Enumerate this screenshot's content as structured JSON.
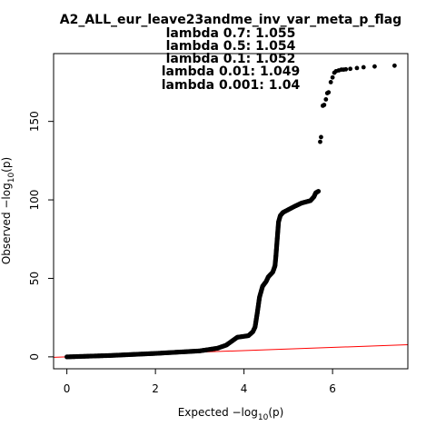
{
  "chart_data": {
    "type": "scatter",
    "title_lines": [
      "A2_ALL_eur_leave23andme_inv_var_meta_p_flag",
      "lambda 0.7: 1.055",
      "lambda 0.5: 1.054",
      "lambda 0.1: 1.052",
      "lambda 0.01: 1.049",
      "lambda 0.001: 1.04"
    ],
    "xlabel": {
      "main": "Expected  −log",
      "sub": "10",
      "tail": "(p)"
    },
    "ylabel": {
      "main": "Observed  −log",
      "sub": "10",
      "tail": "(p)"
    },
    "xlim": [
      -0.3,
      7.7
    ],
    "ylim": [
      -7.6,
      193.2
    ],
    "x_ticks": [
      {
        "value": 0,
        "label": "0"
      },
      {
        "value": 2,
        "label": "2"
      },
      {
        "value": 4,
        "label": "4"
      },
      {
        "value": 6,
        "label": "6"
      }
    ],
    "y_ticks": [
      {
        "value": 0,
        "label": "0"
      },
      {
        "value": 50,
        "label": "50"
      },
      {
        "value": 100,
        "label": "100"
      },
      {
        "value": 150,
        "label": "150"
      }
    ],
    "reference_line": {
      "slope": 1,
      "intercept": 0,
      "color": "#ff0000"
    },
    "point_color": "#000000",
    "curve": [
      [
        0,
        0
      ],
      [
        1,
        0.9
      ],
      [
        2,
        2.2
      ],
      [
        3,
        3.8
      ],
      [
        3.4,
        5.5
      ],
      [
        3.6,
        7.5
      ],
      [
        3.75,
        10.5
      ],
      [
        3.85,
        12.5
      ],
      [
        4.1,
        13.5
      ],
      [
        4.2,
        16
      ],
      [
        4.25,
        19
      ],
      [
        4.3,
        28
      ],
      [
        4.35,
        38
      ],
      [
        4.42,
        45
      ],
      [
        4.5,
        48
      ],
      [
        4.55,
        51
      ],
      [
        4.65,
        54
      ],
      [
        4.7,
        58
      ],
      [
        4.72,
        64
      ],
      [
        4.75,
        75
      ],
      [
        4.78,
        86
      ],
      [
        4.82,
        90
      ],
      [
        4.88,
        92
      ],
      [
        4.98,
        93.5
      ],
      [
        5.15,
        96
      ],
      [
        5.3,
        98
      ],
      [
        5.5,
        99.5
      ],
      [
        5.58,
        102
      ],
      [
        5.62,
        104.5
      ],
      [
        5.68,
        105.5
      ]
    ],
    "tail_points": [
      [
        5.72,
        137
      ],
      [
        5.74,
        140
      ],
      [
        5.78,
        160
      ],
      [
        5.81,
        160.5
      ],
      [
        5.85,
        164
      ],
      [
        5.88,
        168
      ],
      [
        5.91,
        168.5
      ],
      [
        5.96,
        175
      ],
      [
        6.0,
        178
      ],
      [
        6.04,
        181
      ],
      [
        6.08,
        182
      ],
      [
        6.14,
        182.5
      ],
      [
        6.2,
        183
      ],
      [
        6.25,
        183
      ],
      [
        6.3,
        183.2
      ],
      [
        6.4,
        183.5
      ],
      [
        6.55,
        184
      ],
      [
        6.7,
        184.5
      ],
      [
        6.95,
        185
      ],
      [
        7.4,
        185.5
      ]
    ]
  }
}
